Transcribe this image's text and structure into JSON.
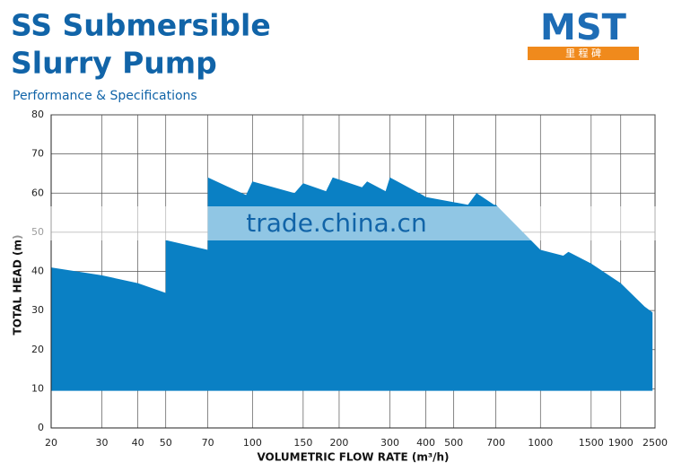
{
  "chart_data": {
    "type": "area",
    "title": [
      "SS Submersible",
      "Slurry Pump"
    ],
    "subtitle": "Performance & Specifications",
    "logo": {
      "name": "MST",
      "subtext": "里 程 碑"
    },
    "watermark": "trade.china.cn",
    "x_label": "VOLUMETRIC FLOW RATE (m³/h)",
    "y_label": "TOTAL HEAD (m)",
    "x_scale": "log",
    "color": "#0a80c4",
    "grid": true,
    "xlim": [
      20,
      2500
    ],
    "ylim": [
      0,
      80
    ],
    "xticks": [
      20,
      30,
      40,
      50,
      70,
      100,
      150,
      200,
      300,
      400,
      500,
      700,
      1000,
      1500,
      1900,
      2500
    ],
    "yticks": [
      0,
      10,
      20,
      30,
      40,
      50,
      60,
      70,
      80
    ],
    "x": [
      20,
      30,
      40,
      50,
      50,
      70,
      70,
      95,
      100,
      140,
      150,
      180,
      190,
      240,
      250,
      290,
      300,
      390,
      400,
      560,
      600,
      690,
      700,
      1000,
      1200,
      1250,
      1500,
      1900,
      2300,
      2450,
      2450,
      20
    ],
    "values": [
      41,
      39,
      37,
      34.5,
      48,
      45.5,
      64,
      59.5,
      63,
      60,
      62.5,
      60.5,
      64,
      61.5,
      63,
      60.5,
      64,
      59.5,
      59,
      57,
      60,
      57,
      57,
      45.5,
      44,
      45,
      42,
      37,
      31,
      29.5,
      9.5,
      9.5
    ]
  }
}
